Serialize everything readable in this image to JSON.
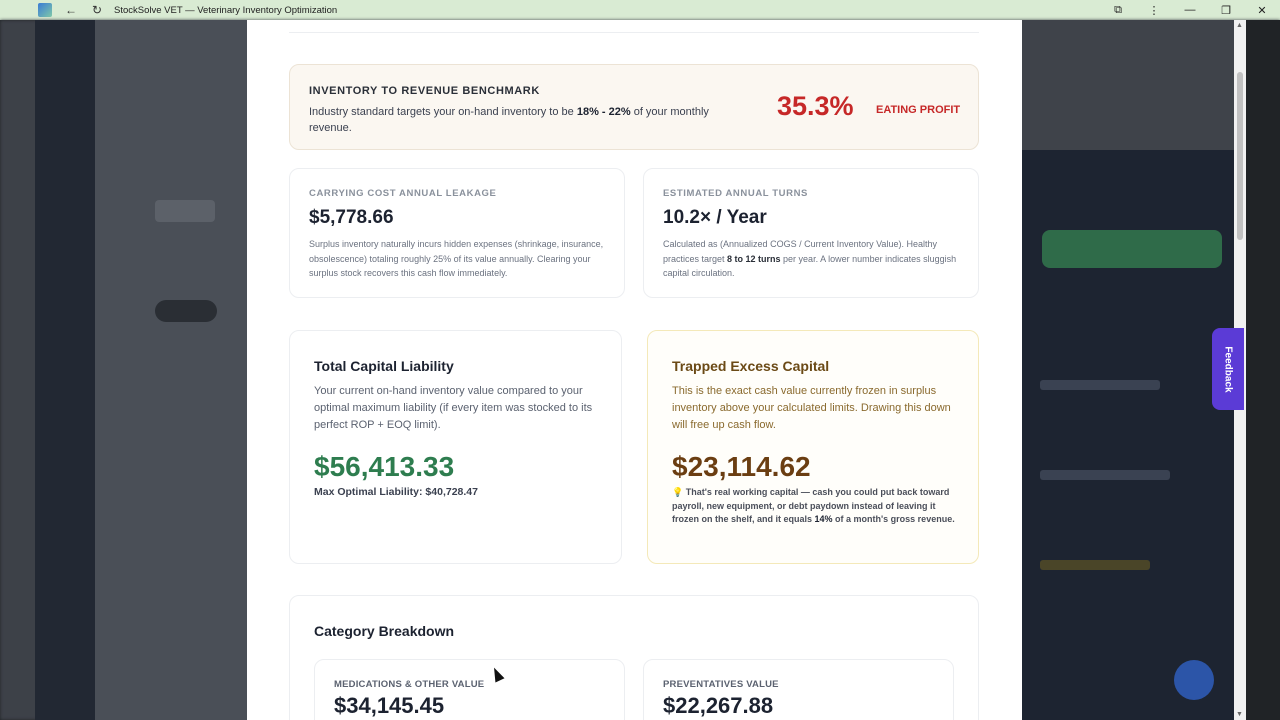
{
  "window": {
    "title": "StockSolve VET — Veterinary Inventory Optimization",
    "back_glyph": "←",
    "reload_glyph": "↻",
    "extensions_glyph": "⧉",
    "menu_glyph": "⋮",
    "min_glyph": "—",
    "max_glyph": "❐",
    "close_glyph": "✕"
  },
  "feedback": {
    "label": "Feedback"
  },
  "benchmark": {
    "heading": "INVENTORY TO REVENUE BENCHMARK",
    "text_before": "Industry standard targets your on-hand inventory to be ",
    "range": "18% - 22%",
    "text_after": " of your monthly revenue.",
    "percent": "35.3%",
    "status": "EATING PROFIT",
    "status_color": "#c62828"
  },
  "carrying_cost": {
    "label": "CARRYING COST ANNUAL LEAKAGE",
    "value": "$5,778.66",
    "description": "Surplus inventory naturally incurs hidden expenses (shrinkage, insurance, obsolescence) totaling roughly 25% of its value annually. Clearing your surplus stock recovers this cash flow immediately."
  },
  "annual_turns": {
    "label": "ESTIMATED ANNUAL TURNS",
    "value": "10.2× / Year",
    "desc_before": "Calculated as (Annualized COGS / Current Inventory Value). Healthy practices target ",
    "desc_bold": "8 to 12 turns",
    "desc_after": " per year. A lower number indicates sluggish capital circulation."
  },
  "total_liability": {
    "title": "Total Capital Liability",
    "description": "Your current on-hand inventory value compared to your optimal maximum liability (if every item was stocked to its perfect ROP + EOQ limit).",
    "amount": "$56,413.33",
    "amount_color": "#2e7d4f",
    "max_label": "Max Optimal Liability: $40,728.47"
  },
  "trapped_capital": {
    "title": "Trapped Excess Capital",
    "description": "This is the exact cash value currently frozen in surplus inventory above your calculated limits. Drawing this down will free up cash flow.",
    "amount": "$23,114.62",
    "amount_color": "#6b3e12",
    "note_icon": "💡",
    "note_before": "That's real working capital — cash you could put back toward payroll, new equipment, or debt paydown instead of leaving it frozen on the shelf, and it equals ",
    "note_bold": "14%",
    "note_after": " of a month's gross revenue."
  },
  "category_breakdown": {
    "title": "Category Breakdown",
    "items": [
      {
        "label": "MEDICATIONS & OTHER VALUE",
        "value": "$34,145.45"
      },
      {
        "label": "PREVENTATIVES VALUE",
        "value": "$22,267.88"
      }
    ]
  }
}
